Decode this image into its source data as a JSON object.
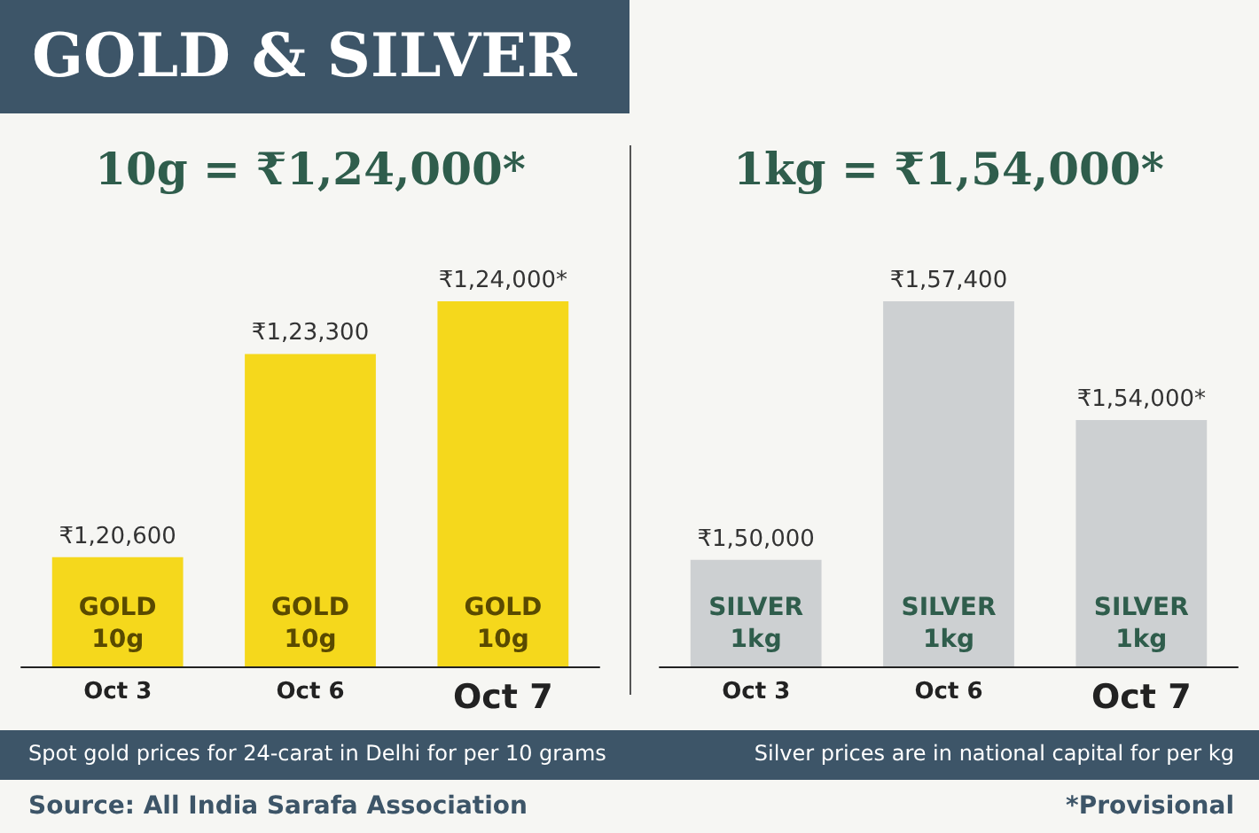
{
  "chart_data": [
    {
      "type": "bar",
      "title": "GOLD & SILVER",
      "subtitle": "10g = ₹1,24,000*",
      "categories": [
        "Oct 3",
        "Oct 6",
        "Oct 7"
      ],
      "values": [
        120600,
        123300,
        124000
      ],
      "color": "#f5d81c",
      "ylim": [
        119150,
        124000
      ],
      "value_labels": [
        "₹1,20,600",
        "₹1,23,300",
        "₹1,24,000*"
      ],
      "annotations": [
        {
          "text": "GOLD\n10g",
          "x": "Oct 3",
          "y": 119150
        },
        {
          "text": "GOLD\n10g",
          "x": "Oct 6",
          "y": 119150
        },
        {
          "text": "GOLD\n10g",
          "x": "Oct 7",
          "y": 119150
        },
        "Spot gold prices for 24-carat in Delhi for per 10 grams",
        "Source: All India Sarafa Association"
      ]
    },
    {
      "type": "bar",
      "subtitle": "1kg = ₹1,54,000*",
      "categories": [
        "Oct 3",
        "Oct 6",
        "Oct 7"
      ],
      "values": [
        150000,
        157400,
        154000
      ],
      "color": "#cdd0d2",
      "ylim": [
        146950,
        157400
      ],
      "value_labels": [
        "₹1,50,000",
        "₹1,57,400",
        "₹1,54,000*"
      ],
      "annotations": [
        {
          "text": "SILVER\n1kg",
          "x": "Oct 3",
          "y": 146950
        },
        {
          "text": "SILVER\n1kg",
          "x": "Oct 6",
          "y": 146950
        },
        {
          "text": "SILVER\n1kg",
          "x": "Oct 7",
          "y": 146950
        },
        "Silver prices are in national capital for per kg",
        "*Provisional"
      ]
    }
  ]
}
